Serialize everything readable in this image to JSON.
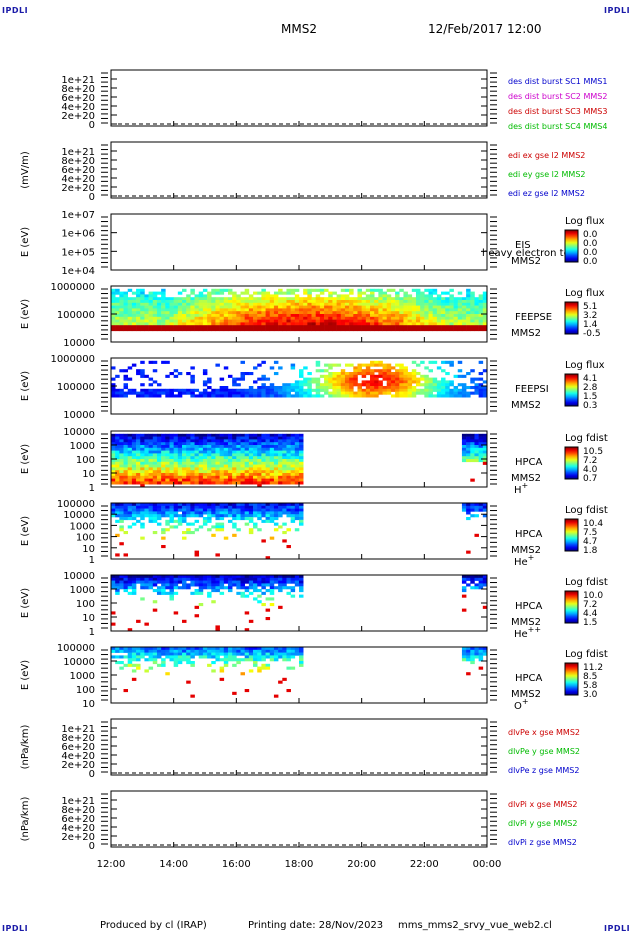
{
  "header": {
    "corner_tl": "IPDLI",
    "corner_tr": "IPDLI",
    "corner_bl": "IPDLI",
    "corner_br": "IPDLI",
    "mission": "MMS2",
    "date": "12/Feb/2017 12:00"
  },
  "footer": {
    "produced": "Produced by cl (IRAP)",
    "printing": "Printing date: 28/Nov/2023",
    "file": "mms_mms2_srvy_vue_web2.cl"
  },
  "colors": {
    "c1": "#0000cc",
    "c2": "#cc00cc",
    "c3": "#cc0000",
    "c4": "#00bb00",
    "frame": "#000000"
  },
  "chart_data": [
    {
      "type": "line",
      "ylabel": "",
      "yticks": [
        "1e+21",
        "8e+20",
        "6e+20",
        "4e+20",
        "2e+20",
        "0"
      ],
      "ylim": [
        0,
        1.2e+21
      ],
      "legend": [
        {
          "text": "des dist burst SC1 MMS1",
          "color": "#0000cc"
        },
        {
          "text": "des dist burst SC2 MMS2",
          "color": "#cc00cc"
        },
        {
          "text": "des dist burst SC3 MMS3",
          "color": "#cc0000"
        },
        {
          "text": "des dist burst SC4 MMS4",
          "color": "#00bb00"
        }
      ]
    },
    {
      "type": "line",
      "ylabel": "(mV/m)",
      "yticks": [
        "1e+21",
        "8e+20",
        "6e+20",
        "4e+20",
        "2e+20",
        "0"
      ],
      "ylim": [
        0,
        1.2e+21
      ],
      "legend": [
        {
          "text": "edi ex gse l2 MMS2",
          "color": "#cc0000"
        },
        {
          "text": "edi ey gse l2 MMS2",
          "color": "#00bb00"
        },
        {
          "text": "edi ez gse l2 MMS2",
          "color": "#0000cc"
        }
      ]
    },
    {
      "type": "heatmap",
      "ylabel": "E (eV)",
      "yticks": [
        "1e+07",
        "1e+06",
        "1e+05",
        "1e+04"
      ],
      "ylim": [
        10000.0,
        10000000.0
      ],
      "log_y": true,
      "instrument": "EIS",
      "extra_label": "heavy electron to",
      "sc": "MMS2",
      "cbar_title": "Log flux",
      "cbar_ticks": [
        "0.0",
        "0.0",
        "0.0",
        "0.0"
      ],
      "data": "none"
    },
    {
      "type": "heatmap",
      "ylabel": "E (eV)",
      "yticks": [
        "1000000",
        "100000",
        "10000"
      ],
      "ylim": [
        10000.0,
        1000000.0
      ],
      "log_y": true,
      "instrument": "FEEPSE",
      "sc": "MMS2",
      "cbar_title": "Log flux",
      "cbar_ticks": [
        "5.1",
        "3.2",
        "1.4",
        "-0.5"
      ]
    },
    {
      "type": "heatmap",
      "ylabel": "E (eV)",
      "yticks": [
        "1000000",
        "100000",
        "10000"
      ],
      "ylim": [
        10000.0,
        1000000.0
      ],
      "log_y": true,
      "instrument": "FEEPSI",
      "sc": "MMS2",
      "cbar_title": "Log flux",
      "cbar_ticks": [
        "4.1",
        "2.8",
        "1.5",
        "0.3"
      ]
    },
    {
      "type": "heatmap",
      "ylabel": "E (eV)",
      "yticks": [
        "10000",
        "1000",
        "100",
        "10",
        "1"
      ],
      "ylim": [
        1,
        30000.0
      ],
      "log_y": true,
      "instrument": "HPCA",
      "sc": "MMS2",
      "species": "H",
      "species_sup": "+",
      "cbar_title": "Log fdist",
      "cbar_ticks": [
        "10.5",
        "7.2",
        "4.0",
        "0.7"
      ]
    },
    {
      "type": "heatmap",
      "ylabel": "E (eV)",
      "yticks": [
        "100000",
        "10000",
        "1000",
        "100",
        "10",
        "1"
      ],
      "ylim": [
        1,
        100000.0
      ],
      "log_y": true,
      "instrument": "HPCA",
      "sc": "MMS2",
      "species": "He",
      "species_sup": "+",
      "cbar_title": "Log fdist",
      "cbar_ticks": [
        "10.4",
        "7.5",
        "4.7",
        "1.8"
      ]
    },
    {
      "type": "heatmap",
      "ylabel": "E (eV)",
      "yticks": [
        "10000",
        "1000",
        "100",
        "10",
        "1"
      ],
      "ylim": [
        1,
        30000.0
      ],
      "log_y": true,
      "instrument": "HPCA",
      "sc": "MMS2",
      "species": "He",
      "species_sup": "++",
      "cbar_title": "Log fdist",
      "cbar_ticks": [
        "10.0",
        "7.2",
        "4.4",
        "1.5"
      ]
    },
    {
      "type": "heatmap",
      "ylabel": "E (eV)",
      "yticks": [
        "100000",
        "10000",
        "1000",
        "100",
        "10"
      ],
      "ylim": [
        1,
        100000.0
      ],
      "log_y": true,
      "instrument": "HPCA",
      "sc": "MMS2",
      "species": "O",
      "species_sup": "+",
      "cbar_title": "Log fdist",
      "cbar_ticks": [
        "11.2",
        "8.5",
        "5.8",
        "3.0"
      ]
    },
    {
      "type": "line",
      "ylabel": "(nPa/km)",
      "yticks": [
        "1e+21",
        "8e+20",
        "6e+20",
        "4e+20",
        "2e+20",
        "0"
      ],
      "ylim": [
        0,
        1.2e+21
      ],
      "legend": [
        {
          "text": "dlvPe x gse MMS2",
          "color": "#cc0000"
        },
        {
          "text": "dlvPe y gse MMS2",
          "color": "#00bb00"
        },
        {
          "text": "dlvPe z gse MMS2",
          "color": "#0000cc"
        }
      ]
    },
    {
      "type": "line",
      "ylabel": "(nPa/km)",
      "yticks": [
        "1e+21",
        "8e+20",
        "6e+20",
        "4e+20",
        "2e+20",
        "0"
      ],
      "ylim": [
        0,
        1.2e+21
      ],
      "legend": [
        {
          "text": "dlvPi x gse MMS2",
          "color": "#cc0000"
        },
        {
          "text": "dlvPi y gse MMS2",
          "color": "#00bb00"
        },
        {
          "text": "dlvPi z gse MMS2",
          "color": "#0000cc"
        }
      ]
    }
  ],
  "x_axis": {
    "ticks": [
      "12:00",
      "14:00",
      "16:00",
      "18:00",
      "20:00",
      "22:00",
      "00:00"
    ],
    "range": [
      "12:00",
      "00:00"
    ]
  }
}
